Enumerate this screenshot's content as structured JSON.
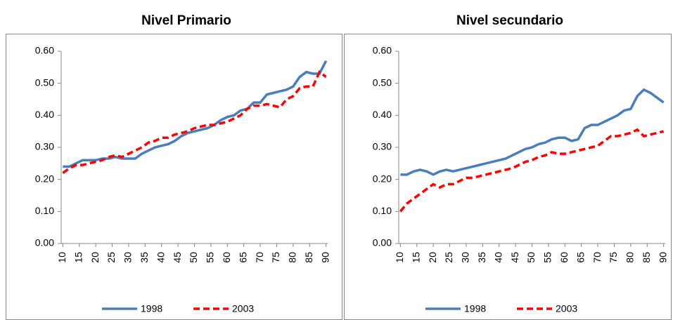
{
  "chart_data": [
    {
      "type": "line",
      "title": "Nivel Primario",
      "x": [
        10,
        12,
        14,
        16,
        18,
        20,
        22,
        24,
        26,
        28,
        30,
        32,
        34,
        36,
        38,
        40,
        42,
        44,
        46,
        48,
        50,
        52,
        54,
        56,
        58,
        60,
        62,
        64,
        66,
        68,
        70,
        72,
        74,
        76,
        78,
        80,
        82,
        84,
        86,
        88,
        90
      ],
      "series": [
        {
          "name": "1998",
          "color": "#4a7ebb",
          "dash": false,
          "values": [
            0.24,
            0.24,
            0.25,
            0.26,
            0.26,
            0.26,
            0.265,
            0.265,
            0.27,
            0.265,
            0.265,
            0.265,
            0.28,
            0.29,
            0.3,
            0.305,
            0.31,
            0.32,
            0.335,
            0.345,
            0.35,
            0.355,
            0.36,
            0.37,
            0.385,
            0.395,
            0.4,
            0.415,
            0.42,
            0.44,
            0.44,
            0.465,
            0.47,
            0.475,
            0.48,
            0.49,
            0.52,
            0.535,
            0.53,
            0.53,
            0.57
          ]
        },
        {
          "name": "2003",
          "color": "#ff0000",
          "dash": true,
          "values": [
            0.22,
            0.235,
            0.245,
            0.245,
            0.25,
            0.255,
            0.26,
            0.27,
            0.275,
            0.27,
            0.28,
            0.29,
            0.3,
            0.315,
            0.32,
            0.33,
            0.33,
            0.34,
            0.345,
            0.35,
            0.36,
            0.365,
            0.37,
            0.37,
            0.375,
            0.38,
            0.39,
            0.4,
            0.42,
            0.43,
            0.43,
            0.435,
            0.43,
            0.425,
            0.45,
            0.46,
            0.485,
            0.49,
            0.49,
            0.535,
            0.52
          ]
        }
      ],
      "xlim": [
        9.5,
        90.5
      ],
      "xticks": [
        10,
        15,
        20,
        25,
        30,
        35,
        40,
        45,
        50,
        55,
        60,
        65,
        70,
        75,
        80,
        85,
        90
      ],
      "ylim": [
        0,
        0.6
      ],
      "yticks": [
        {
          "value": 0,
          "label": "0.00"
        },
        {
          "value": 0.1,
          "label": "0.10"
        },
        {
          "value": 0.2,
          "label": "0.20"
        },
        {
          "value": 0.3,
          "label": "0.30"
        },
        {
          "value": 0.4,
          "label": "0.40"
        },
        {
          "value": 0.5,
          "label": "0.50"
        },
        {
          "value": 0.6,
          "label": "0.60"
        }
      ],
      "legend": "bottom"
    },
    {
      "type": "line",
      "title": "Nivel secundario",
      "x": [
        10,
        12,
        14,
        16,
        18,
        20,
        22,
        24,
        26,
        28,
        30,
        32,
        34,
        36,
        38,
        40,
        42,
        44,
        46,
        48,
        50,
        52,
        54,
        56,
        58,
        60,
        62,
        64,
        66,
        68,
        70,
        72,
        74,
        76,
        78,
        80,
        82,
        84,
        86,
        88,
        90
      ],
      "series": [
        {
          "name": "1998",
          "color": "#4a7ebb",
          "dash": false,
          "values": [
            0.215,
            0.215,
            0.225,
            0.23,
            0.225,
            0.215,
            0.225,
            0.23,
            0.225,
            0.23,
            0.235,
            0.24,
            0.245,
            0.25,
            0.255,
            0.26,
            0.265,
            0.275,
            0.285,
            0.295,
            0.3,
            0.31,
            0.315,
            0.325,
            0.33,
            0.33,
            0.32,
            0.325,
            0.36,
            0.37,
            0.37,
            0.38,
            0.39,
            0.4,
            0.415,
            0.42,
            0.46,
            0.48,
            0.47,
            0.455,
            0.44
          ]
        },
        {
          "name": "2003",
          "color": "#ff0000",
          "dash": true,
          "values": [
            0.1,
            0.125,
            0.14,
            0.155,
            0.17,
            0.185,
            0.175,
            0.185,
            0.185,
            0.195,
            0.205,
            0.205,
            0.21,
            0.215,
            0.22,
            0.225,
            0.23,
            0.235,
            0.245,
            0.255,
            0.26,
            0.27,
            0.275,
            0.285,
            0.28,
            0.28,
            0.285,
            0.29,
            0.295,
            0.3,
            0.305,
            0.32,
            0.335,
            0.335,
            0.34,
            0.345,
            0.355,
            0.335,
            0.34,
            0.345,
            0.35
          ]
        }
      ],
      "xlim": [
        9.5,
        90.5
      ],
      "xticks": [
        10,
        15,
        20,
        25,
        30,
        35,
        40,
        45,
        50,
        55,
        60,
        65,
        70,
        75,
        80,
        85,
        90
      ],
      "ylim": [
        0,
        0.6
      ],
      "yticks": [
        {
          "value": 0,
          "label": "0.00"
        },
        {
          "value": 0.1,
          "label": "0.10"
        },
        {
          "value": 0.2,
          "label": "0.20"
        },
        {
          "value": 0.3,
          "label": "0.30"
        },
        {
          "value": 0.4,
          "label": "0.40"
        },
        {
          "value": 0.5,
          "label": "0.50"
        },
        {
          "value": 0.6,
          "label": "0.60"
        }
      ],
      "legend": "bottom"
    }
  ]
}
